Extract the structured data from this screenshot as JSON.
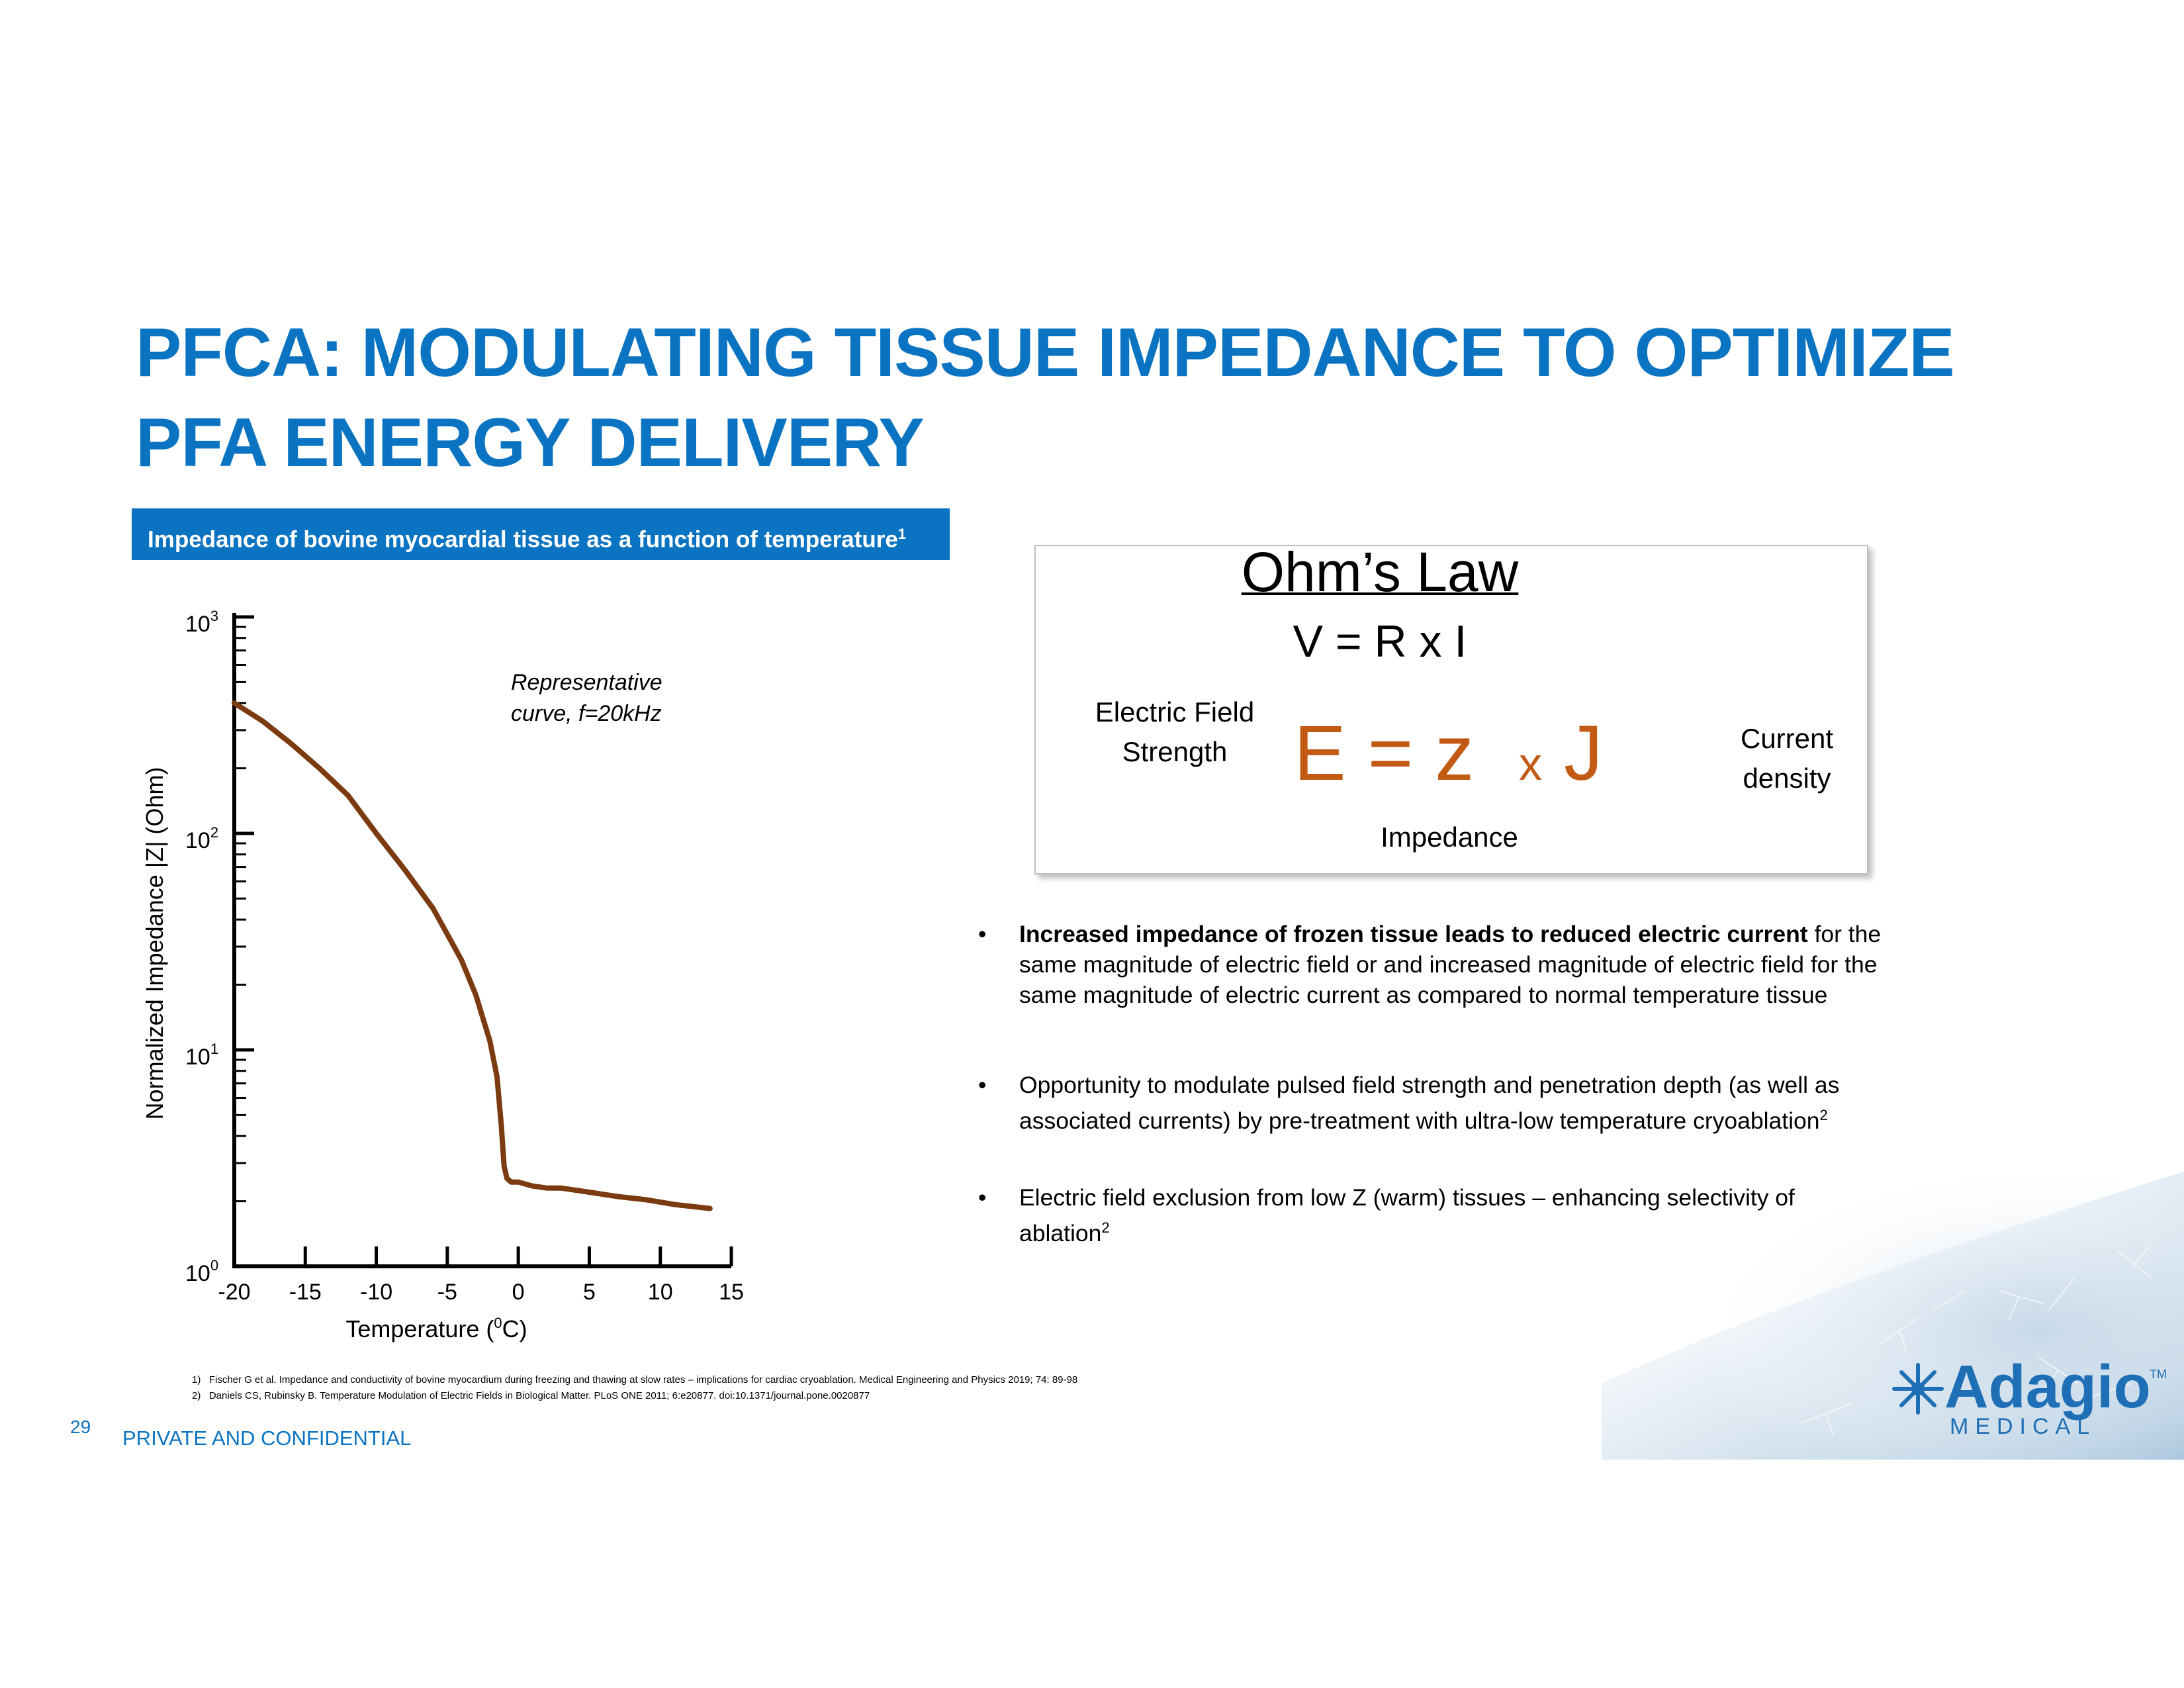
{
  "title": {
    "line1": "PFCA: MODULATING TISSUE IMPEDANCE TO OPTIMIZE",
    "line2": "PFA ENERGY DELIVERY"
  },
  "chart_banner": {
    "text": "Impedance of bovine myocardial tissue as a function of temperature",
    "superscript": "1"
  },
  "chart_data": {
    "type": "line",
    "title": "Impedance of bovine myocardial tissue as a function of temperature",
    "xlabel": "Temperature (0C)",
    "xlabel_parts": [
      "Temperature (",
      "0",
      "C)"
    ],
    "ylabel": "Normalized Impedance |Z| (Ohm)",
    "x_ticks": [
      "-20",
      "-15",
      "-10",
      "-5",
      "0",
      "5",
      "10",
      "15"
    ],
    "x_tick_values": [
      -20,
      -15,
      -10,
      -5,
      0,
      5,
      10,
      15
    ],
    "y_ticks": [
      {
        "base": "10",
        "exp": "0",
        "value": 1
      },
      {
        "base": "10",
        "exp": "1",
        "value": 10
      },
      {
        "base": "10",
        "exp": "2",
        "value": 100
      },
      {
        "base": "10",
        "exp": "3",
        "value": 1000
      }
    ],
    "xlim": [
      -20,
      15
    ],
    "ylim": [
      1,
      1000
    ],
    "yscale": "log",
    "grid": false,
    "annotation": [
      "Representative",
      "curve, f=20kHz"
    ],
    "series": [
      {
        "color": "#7b3a0f",
        "x": [
          -20,
          -18,
          -16,
          -14,
          -12,
          -10,
          -8,
          -6,
          -4,
          -3,
          -2,
          -1.5,
          -1.2,
          -1,
          -0.8,
          -0.5,
          0,
          1,
          2,
          3,
          5,
          7,
          9,
          11,
          13.5
        ],
        "y": [
          400,
          330,
          260,
          200,
          150,
          100,
          68,
          45,
          26,
          18,
          11,
          7.5,
          4.5,
          2.9,
          2.55,
          2.45,
          2.45,
          2.35,
          2.3,
          2.3,
          2.2,
          2.1,
          2.03,
          1.93,
          1.85
        ]
      }
    ]
  },
  "ohms_law": {
    "title": "Ohm’s Law",
    "equation": "V = R x I",
    "field_label_1": "Electric Field",
    "field_label_2": "Strength",
    "big_e": "E",
    "big_eq": "=",
    "big_z": "z",
    "big_x": "x",
    "big_j": "J",
    "current_label_1": "Current",
    "current_label_2": "density",
    "impedance_label": "Impedance",
    "accent_color": "#c25a14"
  },
  "bullets": [
    {
      "bold": "Increased impedance of frozen tissue leads to reduced electric current",
      "text": " for the same magnitude of electric field or and increased magnitude of electric field for the same magnitude of electric current as compared to normal temperature tissue"
    },
    {
      "text": "Opportunity to modulate pulsed field strength and penetration depth (as well as associated currents) by pre-treatment with ultra-low temperature cryoablation",
      "sup": "2"
    },
    {
      "text": "Electric field exclusion from low Z (warm) tissues – enhancing selectivity of ablation",
      "sup": "2"
    }
  ],
  "references": [
    "1)   Fischer G et al. Impedance and conductivity of bovine myocardium during freezing and thawing at slow rates – implications for cardiac cryoablation. Medical Engineering and Physics 2019; 74: 89-98",
    "2)   Daniels CS, Rubinsky B. Temperature Modulation of Electric Fields in Biological Matter. PLoS ONE 2011; 6:e20877. doi:10.1371/journal.pone.0020877"
  ],
  "footer": {
    "slide_number": "29",
    "confidential": "PRIVATE AND CONFIDENTIAL"
  },
  "logo": {
    "name": "Adagio",
    "tm": "TM",
    "sub": "MEDICAL",
    "color": "#1e6fb5",
    "icon": "snowflake-icon"
  },
  "colors": {
    "brand_blue": "#0a74c2",
    "curve_brown": "#7b3a0f"
  }
}
